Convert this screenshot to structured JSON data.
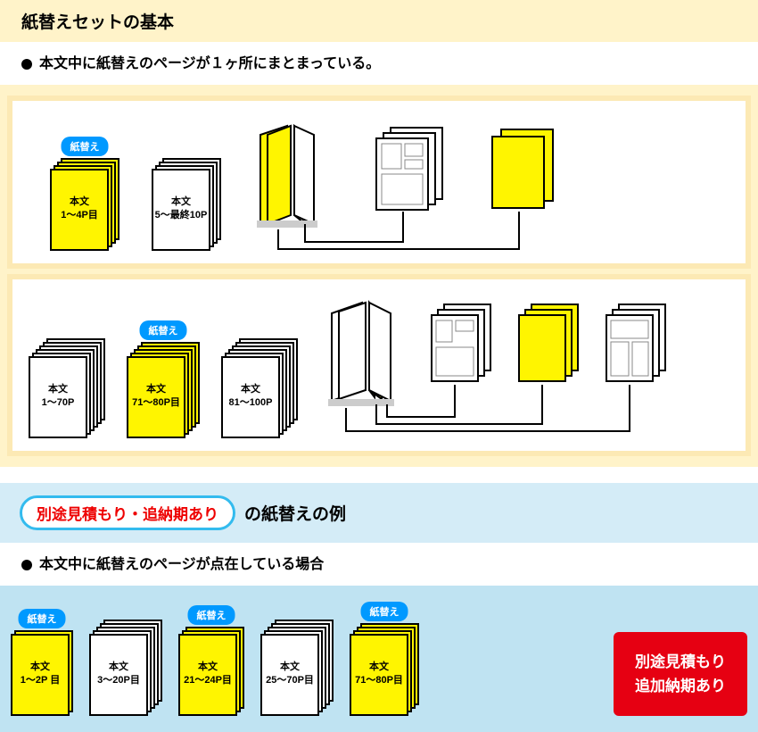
{
  "colors": {
    "cream": "#fff3c9",
    "cream_border": "#fce9b4",
    "blue_bg": "#d4ecf7",
    "blue_border": "#bfe3f2",
    "yellow": "#fff500",
    "white": "#ffffff",
    "black": "#000000",
    "tag_blue": "#0099ff",
    "pill_border": "#33bbee",
    "pill_text": "#ee0000",
    "red_box": "#e60012",
    "gray_line": "#888888"
  },
  "section1": {
    "title": "紙替えセットの基本",
    "bullet": "本文中に紙替えのページが１ヶ所にまとまっている。",
    "tag_label": "紙替え",
    "row1": {
      "stacks": [
        {
          "color": "yellow",
          "count": 4,
          "tag": true,
          "l1": "本文",
          "l2": "1～4P目"
        },
        {
          "color": "white",
          "count": 4,
          "tag": false,
          "l1": "本文",
          "l2": "5～最終10P"
        }
      ]
    },
    "row2": {
      "stacks": [
        {
          "color": "white",
          "count": 6,
          "tag": false,
          "l1": "本文",
          "l2": "1～70P"
        },
        {
          "color": "yellow",
          "count": 5,
          "tag": true,
          "l1": "本文",
          "l2": "71～80P目"
        },
        {
          "color": "white",
          "count": 6,
          "tag": false,
          "l1": "本文",
          "l2": "81～100P"
        }
      ]
    }
  },
  "section2": {
    "pill": "別途見積もり・追納期あり",
    "title_suffix": "の紙替えの例",
    "bullet": "本文中に紙替えのページが点在している場合",
    "tag_label": "紙替え",
    "stacks": [
      {
        "color": "yellow",
        "count": 2,
        "tag": true,
        "l1": "本文",
        "l2": "1～2P 目"
      },
      {
        "color": "white",
        "count": 5,
        "tag": false,
        "l1": "本文",
        "l2": "3～20P目"
      },
      {
        "color": "yellow",
        "count": 3,
        "tag": true,
        "l1": "本文",
        "l2": "21～24P目"
      },
      {
        "color": "white",
        "count": 5,
        "tag": false,
        "l1": "本文",
        "l2": "25～70P目"
      },
      {
        "color": "yellow",
        "count": 4,
        "tag": true,
        "l1": "本文",
        "l2": "71～80P目"
      }
    ],
    "red_box_l1": "別途見積もり",
    "red_box_l2": "追加納期あり"
  }
}
